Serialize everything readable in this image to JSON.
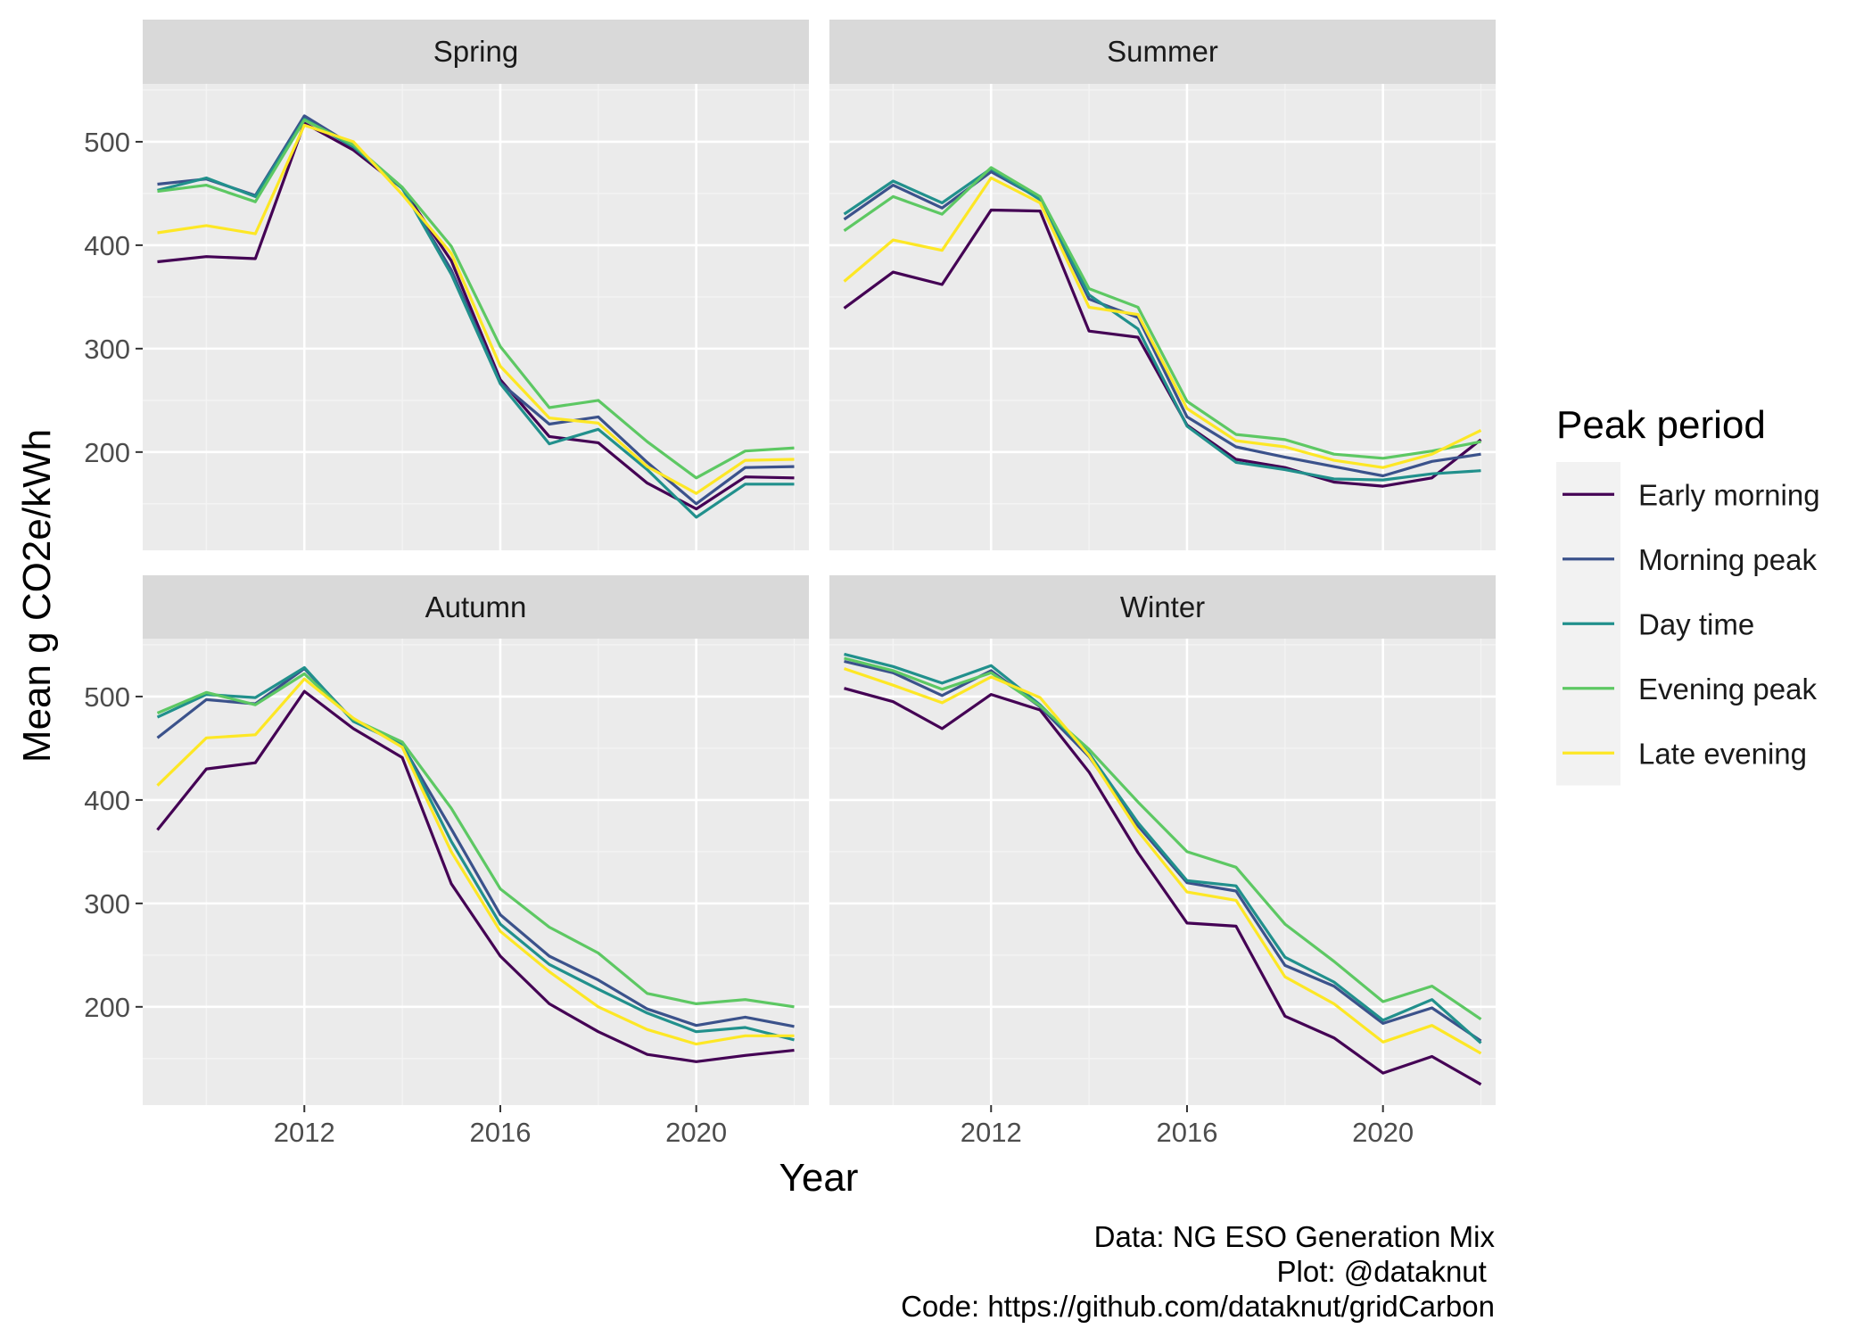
{
  "colors": {
    "panel_bg": "#EBEBEB",
    "strip_bg": "#D9D9D9",
    "grid_major": "#FFFFFF",
    "grid_minor": "#F4F4F4",
    "axis_text": "#4D4D4D",
    "title_text": "#000000",
    "legend_key_bg": "#F2F2F2"
  },
  "chart_data": {
    "type": "line",
    "facet_by": "season",
    "xlabel": "Year",
    "ylabel": "Mean g CO2e/kWh",
    "x": [
      2009,
      2010,
      2011,
      2012,
      2013,
      2014,
      2015,
      2016,
      2017,
      2018,
      2019,
      2020,
      2021,
      2022
    ],
    "xlim": [
      2008.7,
      2022.3
    ],
    "ylim": [
      105,
      556
    ],
    "x_ticks": [
      2012,
      2016,
      2020
    ],
    "y_ticks": [
      200,
      300,
      400,
      500
    ],
    "grid": true,
    "legend": {
      "title": "Peak period",
      "position": "right",
      "entries": [
        "Early morning",
        "Morning peak",
        "Day time",
        "Evening peak",
        "Late evening"
      ]
    },
    "series_colors": {
      "Early morning": "#440154",
      "Morning peak": "#3B528B",
      "Day time": "#21908C",
      "Evening peak": "#5DC863",
      "Late evening": "#FDE725"
    },
    "panels": [
      {
        "title": "Spring",
        "series": [
          {
            "name": "Early morning",
            "values": [
              384,
              389,
              387,
              518,
              492,
              455,
              385,
              270,
              215,
              209,
              170,
              145,
              176,
              175
            ]
          },
          {
            "name": "Morning peak",
            "values": [
              459,
              464,
              448,
              525,
              496,
              455,
              376,
              267,
              227,
              234,
              190,
              150,
              185,
              186
            ]
          },
          {
            "name": "Day time",
            "values": [
              453,
              465,
              447,
              522,
              495,
              455,
              372,
              266,
              208,
              222,
              183,
              137,
              169,
              169
            ]
          },
          {
            "name": "Evening peak",
            "values": [
              452,
              458,
              442,
              521,
              497,
              456,
              399,
              302,
              243,
              250,
              210,
              175,
              201,
              204
            ]
          },
          {
            "name": "Late evening",
            "values": [
              412,
              419,
              411,
              516,
              500,
              449,
              392,
              283,
              233,
              228,
              186,
              160,
              192,
              193
            ]
          }
        ]
      },
      {
        "title": "Summer",
        "series": [
          {
            "name": "Early morning",
            "values": [
              339,
              374,
              362,
              434,
              433,
              317,
              311,
              226,
              193,
              185,
              171,
              167,
              175,
              212
            ]
          },
          {
            "name": "Morning peak",
            "values": [
              425,
              458,
              436,
              471,
              445,
              348,
              330,
              234,
              205,
              195,
              186,
              177,
              191,
              198
            ]
          },
          {
            "name": "Day time",
            "values": [
              430,
              462,
              441,
              474,
              444,
              352,
              319,
              225,
              190,
              183,
              174,
              173,
              179,
              182
            ]
          },
          {
            "name": "Evening peak",
            "values": [
              414,
              447,
              430,
              475,
              447,
              358,
              340,
              249,
              217,
              212,
              198,
              194,
              201,
              210
            ]
          },
          {
            "name": "Late evening",
            "values": [
              365,
              405,
              395,
              465,
              441,
              340,
              333,
              242,
              211,
              205,
              192,
              185,
              198,
              221
            ]
          }
        ]
      },
      {
        "title": "Autumn",
        "series": [
          {
            "name": "Early morning",
            "values": [
              371,
              430,
              436,
              505,
              469,
              441,
              319,
              249,
              203,
              176,
              154,
              147,
              153,
              158
            ]
          },
          {
            "name": "Morning peak",
            "values": [
              460,
              497,
              493,
              527,
              477,
              453,
              372,
              289,
              249,
              226,
              198,
              182,
              190,
              181
            ]
          },
          {
            "name": "Day time",
            "values": [
              480,
              502,
              499,
              528,
              476,
              454,
              360,
              280,
              241,
              217,
              194,
              176,
              180,
              168
            ]
          },
          {
            "name": "Evening peak",
            "values": [
              484,
              504,
              492,
              522,
              478,
              456,
              392,
              314,
              277,
              252,
              213,
              203,
              207,
              200
            ]
          },
          {
            "name": "Late evening",
            "values": [
              414,
              460,
              463,
              517,
              479,
              451,
              350,
              273,
              234,
              200,
              178,
              164,
              172,
              172
            ]
          }
        ]
      },
      {
        "title": "Winter",
        "series": [
          {
            "name": "Early morning",
            "values": [
              508,
              495,
              469,
              502,
              487,
              427,
              349,
              281,
              278,
              191,
              170,
              136,
              152,
              125
            ]
          },
          {
            "name": "Morning peak",
            "values": [
              534,
              523,
              501,
              525,
              490,
              442,
              375,
              320,
              312,
              240,
              220,
              184,
              199,
              167
            ]
          },
          {
            "name": "Day time",
            "values": [
              541,
              529,
              513,
              530,
              492,
              445,
              378,
              322,
              317,
              248,
              224,
              187,
              207,
              165
            ]
          },
          {
            "name": "Evening peak",
            "values": [
              537,
              525,
              507,
              523,
              491,
              449,
              398,
              350,
              335,
              280,
              244,
              205,
              220,
              188
            ]
          },
          {
            "name": "Late evening",
            "values": [
              527,
              511,
              494,
              519,
              499,
              443,
              370,
              311,
              303,
              229,
              203,
              166,
              182,
              155
            ]
          }
        ]
      }
    ]
  },
  "caption": {
    "line1": "Data: NG ESO Generation Mix",
    "line2": "Plot: @dataknut ",
    "line3": "Code: https://github.com/dataknut/gridCarbon"
  }
}
